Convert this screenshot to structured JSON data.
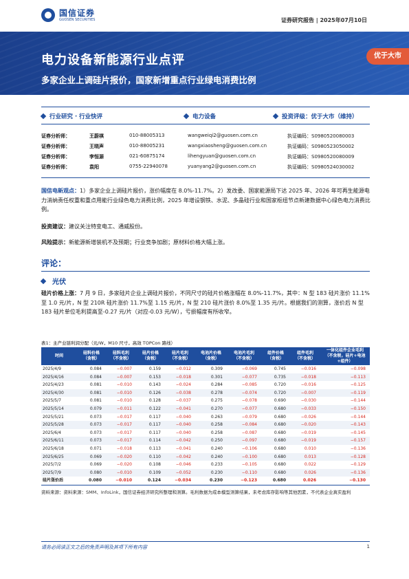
{
  "header": {
    "logo_cn": "国信证券",
    "logo_en": "GUOSEN SECURITIES",
    "report_type": "证券研究报告  |  2025年07月10日"
  },
  "banner": {
    "title": "电力设备新能源行业点评",
    "subtitle": "多家企业上调硅片报价，国家新增重点行业绿电消费比例",
    "rating": "优于大市",
    "colors": {
      "brand": "#1f4e9e",
      "rating_bg": "#e35b3a"
    }
  },
  "categories": [
    "行业研究 · 行业快评",
    "电力设备",
    "投资评级：优于大市（维持）"
  ],
  "analysts": [
    {
      "label": "证券分析师：",
      "name": "王蔚祺",
      "phone": "010-88005313",
      "email": "wangweiqi2@guosen.com.cn",
      "cert": "执证编码：S0980520080003"
    },
    {
      "label": "证券分析师：",
      "name": "王晓声",
      "phone": "010-88005231",
      "email": "wangxiaosheng@guosen.com.cn",
      "cert": "执证编码：S0980523050002"
    },
    {
      "label": "证券分析师：",
      "name": "李恒源",
      "phone": "021-60875174",
      "email": "lihengyuan@guosen.com.cn",
      "cert": "执证编码：S0980520080009"
    },
    {
      "label": "证券分析师：",
      "name": "袁阳",
      "phone": "0755-22940078",
      "email": "yuanyang2@guosen.com.cn",
      "cert": "执证编码：S0980524030002"
    }
  ],
  "summary": {
    "view_label": "国信电新观点：",
    "view_text": "1）多家企业上调硅片报价，涨价幅度在 8.0%-11.7%。2）发改委、国家能源局下达 2025 年、2026 年可再生能源电力消纳责任权重和重点用能行业绿色电力消费比例，2025 年增设钢铁、水泥、多晶硅行业和国家枢纽节点新建数据中心绿色电力消费比例。",
    "invest_label": "投资建议：",
    "invest_text": "建议关注特变电工、通威股份。",
    "risk_label": "风险提示：",
    "risk_text": "新能源新增装机不及预期；行业竞争加剧；原材料价格大幅上涨。"
  },
  "comment": {
    "heading": "评论：",
    "sub_heading": "光伏",
    "para_label": "硅片价格上涨：",
    "para_text": "7 月 9 日，多家硅片企业上调硅片报价，不同尺寸的硅片价格涨幅在 8.0%-11.7%，其中：N 型 183 硅片涨价 11.1%至 1.0 元/片，N 型 210R 硅片涨价 11.7%至 1.15 元/片，N 型 210 硅片涨价 8.0%至 1.35 元/片。根据我们的测算，涨价后 N 型 183 硅片单位毛利提高至-0.27 元/片（对应-0.03 元/W），亏损幅度有所收窄。"
  },
  "table": {
    "caption": "表1：主产业链利润分配（元/W，M10 尺寸，高效 TOPCon 路线）",
    "headers": [
      "时间",
      "硅料价格\n（含税）",
      "硅料毛利\n（不含税）",
      "硅片价格\n（含税）",
      "硅片毛利\n（不含税）",
      "电池片价格\n（含税）",
      "电池片毛利\n（不含税）",
      "组件价格\n（含税）",
      "组件毛利\n（不含税）",
      "一体化组件企业毛利\n（不含税，硅片+电池+组件）"
    ],
    "rows": [
      [
        "2025/4/9",
        "0.084",
        "−0.007",
        "0.159",
        "−0.012",
        "0.309",
        "−0.069",
        "0.745",
        "−0.016",
        "−0.098"
      ],
      [
        "2025/4/16",
        "0.084",
        "−0.007",
        "0.153",
        "−0.018",
        "0.301",
        "−0.077",
        "0.735",
        "−0.018",
        "−0.113"
      ],
      [
        "2025/4/23",
        "0.081",
        "−0.010",
        "0.143",
        "−0.024",
        "0.284",
        "−0.085",
        "0.720",
        "−0.016",
        "−0.125"
      ],
      [
        "2025/4/30",
        "0.081",
        "−0.010",
        "0.126",
        "−0.038",
        "0.278",
        "−0.074",
        "0.720",
        "−0.007",
        "−0.119"
      ],
      [
        "2025/5/7",
        "0.081",
        "−0.010",
        "0.128",
        "−0.037",
        "0.275",
        "−0.078",
        "0.690",
        "−0.030",
        "−0.144"
      ],
      [
        "2025/5/14",
        "0.079",
        "−0.011",
        "0.122",
        "−0.041",
        "0.270",
        "−0.077",
        "0.680",
        "−0.033",
        "−0.150"
      ],
      [
        "2025/5/21",
        "0.073",
        "−0.017",
        "0.117",
        "−0.040",
        "0.263",
        "−0.079",
        "0.680",
        "−0.026",
        "−0.144"
      ],
      [
        "2025/5/28",
        "0.073",
        "−0.017",
        "0.117",
        "−0.040",
        "0.258",
        "−0.084",
        "0.680",
        "−0.020",
        "−0.143"
      ],
      [
        "2025/6/4",
        "0.073",
        "−0.017",
        "0.117",
        "−0.040",
        "0.258",
        "−0.087",
        "0.680",
        "−0.019",
        "−0.145"
      ],
      [
        "2025/6/11",
        "0.073",
        "−0.017",
        "0.114",
        "−0.042",
        "0.250",
        "−0.097",
        "0.680",
        "−0.019",
        "−0.157"
      ],
      [
        "2025/6/18",
        "0.071",
        "−0.018",
        "0.113",
        "−0.041",
        "0.240",
        "−0.106",
        "0.680",
        "0.010",
        "−0.136"
      ],
      [
        "2025/6/25",
        "0.069",
        "−0.020",
        "0.110",
        "−0.042",
        "0.240",
        "−0.100",
        "0.680",
        "0.013",
        "−0.128"
      ],
      [
        "2025/7/2",
        "0.069",
        "−0.020",
        "0.108",
        "−0.046",
        "0.233",
        "−0.105",
        "0.680",
        "0.022",
        "−0.129"
      ],
      [
        "2025/7/9",
        "0.080",
        "−0.010",
        "0.109",
        "−0.052",
        "0.230",
        "−0.110",
        "0.680",
        "0.026",
        "−0.136"
      ],
      [
        "硅片涨价后",
        "0.080",
        "−0.010",
        "0.124",
        "−0.034",
        "0.230",
        "−0.123",
        "0.680",
        "0.026",
        "−0.130"
      ]
    ],
    "source": "资料来源：资料来源：SMM、InfoLink，国信证券经济研究所整理和测算。毛利数据为成本模型测算结果，未考虑库存影响等其他因素，不代表企业真实盈利"
  },
  "footer": {
    "disclaimer": "请务必阅读正文之后的免责声明及其项下所有内容",
    "page": "1"
  }
}
